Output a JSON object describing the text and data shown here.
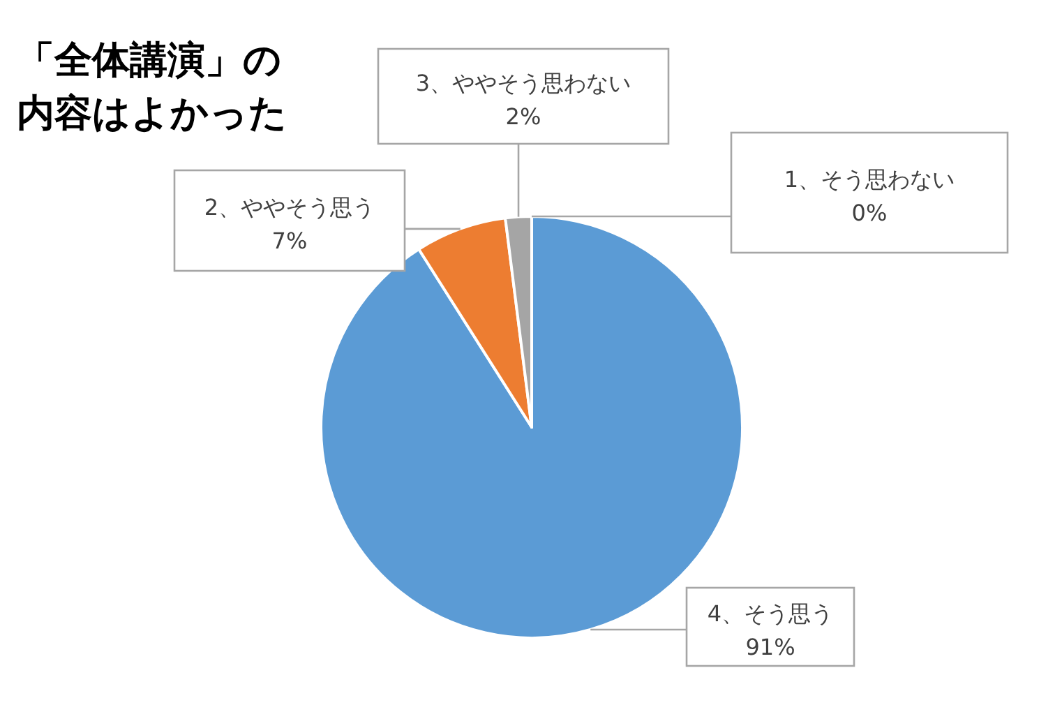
{
  "chart_data": {
    "type": "pie",
    "title": "「全体講演」の内容はよかった",
    "categories": [
      "4、そう思う",
      "2、ややそう思う",
      "3、ややそう思わない",
      "1、そう思わない"
    ],
    "values": [
      91,
      7,
      2,
      0
    ],
    "colors": [
      "#5b9bd5",
      "#ed7d31",
      "#a5a5a5",
      "#ffc000"
    ],
    "value_labels": [
      "91%",
      "7%",
      "2%",
      "0%"
    ],
    "legend": false
  }
}
